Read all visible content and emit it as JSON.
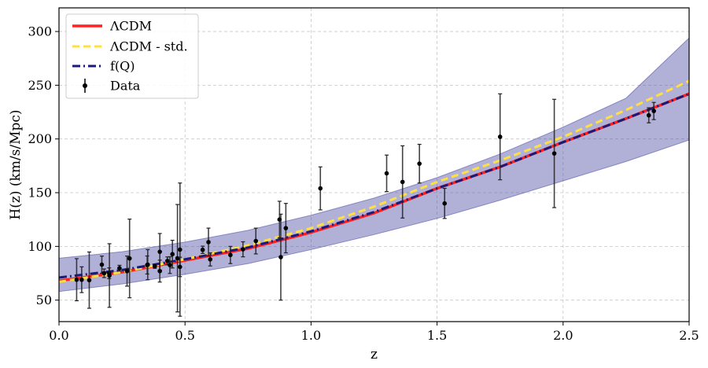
{
  "chart_data": {
    "type": "line",
    "xlabel": "z",
    "ylabel": "H(z) (km/s/Mpc)",
    "xlim": [
      0.0,
      2.5
    ],
    "ylim": [
      30,
      322
    ],
    "xticks": [
      0.0,
      0.5,
      1.0,
      1.5,
      2.0,
      2.5
    ],
    "xtick_labels": [
      "0.0",
      "0.5",
      "1.0",
      "1.5",
      "2.0",
      "2.5"
    ],
    "yticks": [
      50,
      100,
      150,
      200,
      250,
      300
    ],
    "ytick_labels": [
      "50",
      "100",
      "150",
      "200",
      "250",
      "300"
    ],
    "grid": true,
    "legend_position": "top-left",
    "band": {
      "color": "#3c3c9e",
      "x": [
        0.0,
        0.25,
        0.5,
        0.75,
        1.0,
        1.25,
        1.5,
        1.75,
        2.0,
        2.25,
        2.5
      ],
      "upper": [
        89,
        95,
        104,
        115,
        129,
        145,
        164,
        186,
        211,
        238,
        294
      ],
      "lower": [
        58,
        65,
        74,
        84,
        97,
        111,
        126,
        143,
        161,
        179,
        199
      ]
    },
    "series": [
      {
        "name": "ΛCDM",
        "color": "#ff2020",
        "style": "solid",
        "x": [
          0.0,
          0.25,
          0.5,
          0.75,
          1.0,
          1.25,
          1.5,
          1.75,
          2.0,
          2.25,
          2.5
        ],
        "y": [
          68,
          76,
          87,
          98,
          113,
          131,
          154,
          174,
          197,
          219,
          242
        ]
      },
      {
        "name": "ΛCDM - std.",
        "color": "#ffe040",
        "style": "dashed",
        "x": [
          0.0,
          0.25,
          0.5,
          0.75,
          1.0,
          1.25,
          1.5,
          1.75,
          2.0,
          2.25,
          2.5
        ],
        "y": [
          67,
          76,
          88,
          101,
          117,
          137,
          160,
          180,
          202,
          227,
          254
        ]
      },
      {
        "name": "f(Q)",
        "color": "#1a1a7a",
        "style": "dashdot",
        "x": [
          0.0,
          0.25,
          0.5,
          0.75,
          1.0,
          1.25,
          1.5,
          1.75,
          2.0,
          2.25,
          2.5
        ],
        "y": [
          71,
          78,
          88,
          99,
          114,
          132,
          154,
          174,
          197,
          219,
          242
        ]
      }
    ],
    "data_points": {
      "name": "Data",
      "color": "#000000",
      "points": [
        {
          "x": 0.07,
          "y": 69,
          "err": 19.6
        },
        {
          "x": 0.09,
          "y": 69,
          "err": 12
        },
        {
          "x": 0.12,
          "y": 68.6,
          "err": 26.2
        },
        {
          "x": 0.17,
          "y": 83,
          "err": 8
        },
        {
          "x": 0.179,
          "y": 75,
          "err": 4
        },
        {
          "x": 0.199,
          "y": 75,
          "err": 5
        },
        {
          "x": 0.2,
          "y": 72.9,
          "err": 29.6
        },
        {
          "x": 0.24,
          "y": 79.7,
          "err": 2.7
        },
        {
          "x": 0.27,
          "y": 77,
          "err": 14
        },
        {
          "x": 0.28,
          "y": 88.8,
          "err": 36.6
        },
        {
          "x": 0.35,
          "y": 82.7,
          "err": 8.4
        },
        {
          "x": 0.352,
          "y": 83,
          "err": 14
        },
        {
          "x": 0.38,
          "y": 81.5,
          "err": 1.9
        },
        {
          "x": 0.4,
          "y": 95,
          "err": 17
        },
        {
          "x": 0.4,
          "y": 77,
          "err": 10.2
        },
        {
          "x": 0.43,
          "y": 86.5,
          "err": 3.7
        },
        {
          "x": 0.44,
          "y": 82.6,
          "err": 7.8
        },
        {
          "x": 0.45,
          "y": 92.8,
          "err": 12.9
        },
        {
          "x": 0.47,
          "y": 89,
          "err": 50
        },
        {
          "x": 0.48,
          "y": 97,
          "err": 62
        },
        {
          "x": 0.48,
          "y": 80.9,
          "err": 9
        },
        {
          "x": 0.57,
          "y": 96.8,
          "err": 3.4
        },
        {
          "x": 0.593,
          "y": 104,
          "err": 13
        },
        {
          "x": 0.6,
          "y": 87.9,
          "err": 6.1
        },
        {
          "x": 0.68,
          "y": 92,
          "err": 8
        },
        {
          "x": 0.73,
          "y": 97.3,
          "err": 7
        },
        {
          "x": 0.781,
          "y": 105,
          "err": 12
        },
        {
          "x": 0.875,
          "y": 125,
          "err": 17
        },
        {
          "x": 0.88,
          "y": 90,
          "err": 40
        },
        {
          "x": 0.9,
          "y": 117,
          "err": 23
        },
        {
          "x": 1.037,
          "y": 154,
          "err": 20
        },
        {
          "x": 1.3,
          "y": 168,
          "err": 17
        },
        {
          "x": 1.363,
          "y": 160,
          "err": 33.6
        },
        {
          "x": 1.43,
          "y": 177,
          "err": 18
        },
        {
          "x": 1.53,
          "y": 140,
          "err": 14
        },
        {
          "x": 1.75,
          "y": 202,
          "err": 40
        },
        {
          "x": 1.965,
          "y": 186.5,
          "err": 50.4
        },
        {
          "x": 2.34,
          "y": 222,
          "err": 7
        },
        {
          "x": 2.36,
          "y": 226,
          "err": 8
        }
      ]
    }
  }
}
